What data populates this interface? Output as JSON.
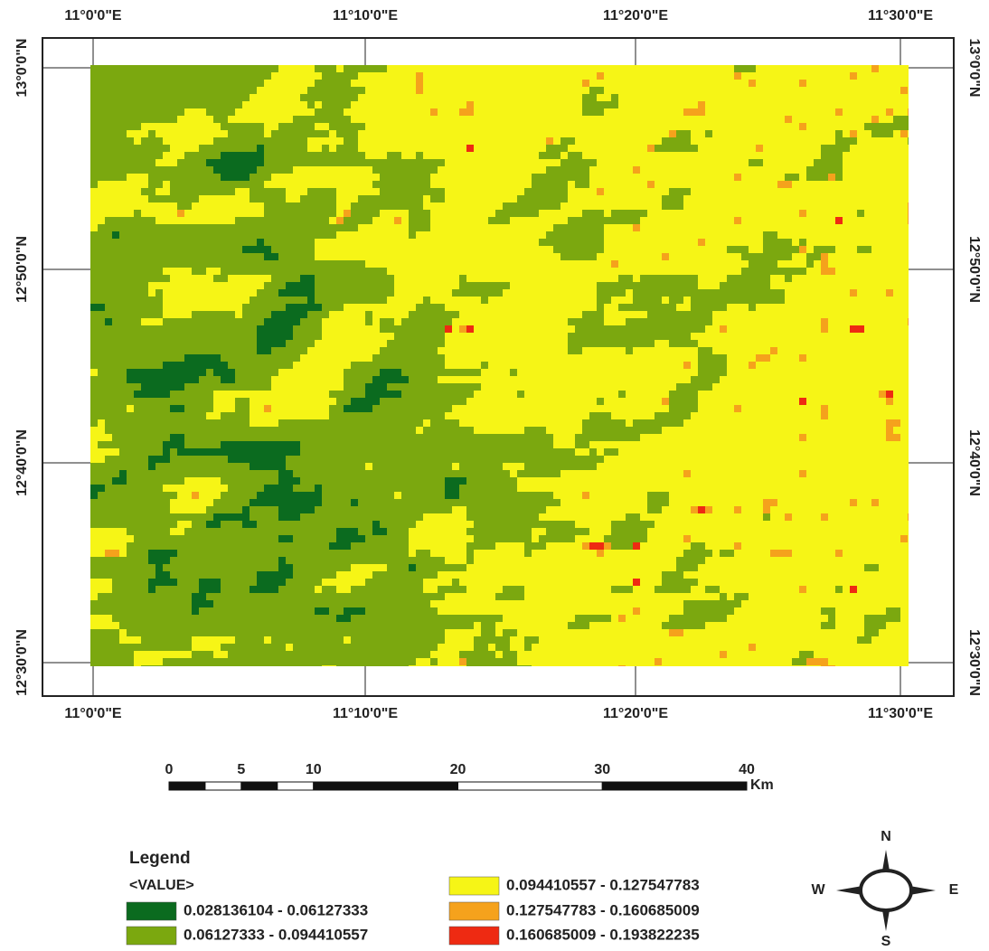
{
  "map": {
    "x_ticks": [
      "11°0'0\"E",
      "11°10'0\"E",
      "11°20'0\"E",
      "11°30'0\"E"
    ],
    "y_ticks": [
      "13°0'0\"N",
      "12°50'0\"N",
      "12°40'0\"N",
      "12°30'0\"N"
    ]
  },
  "scale_bar": {
    "labels": [
      0,
      5,
      10,
      20,
      30,
      40
    ],
    "unit": "Km"
  },
  "legend": {
    "title": "Legend",
    "field": "<VALUE>",
    "classes": [
      {
        "label": "0.028136104 - 0.06127333",
        "color": "#0b6b1f"
      },
      {
        "label": "0.06127333 - 0.094410557",
        "color": "#7ba80f"
      },
      {
        "label": "0.094410557 - 0.127547783",
        "color": "#f6f516"
      },
      {
        "label": "0.127547783 - 0.160685009",
        "color": "#f5a21c"
      },
      {
        "label": "0.160685009 - 0.193822235",
        "color": "#ee2a12"
      }
    ]
  },
  "compass": {
    "north": "N",
    "west": "W",
    "east": "E",
    "south": "S"
  }
}
